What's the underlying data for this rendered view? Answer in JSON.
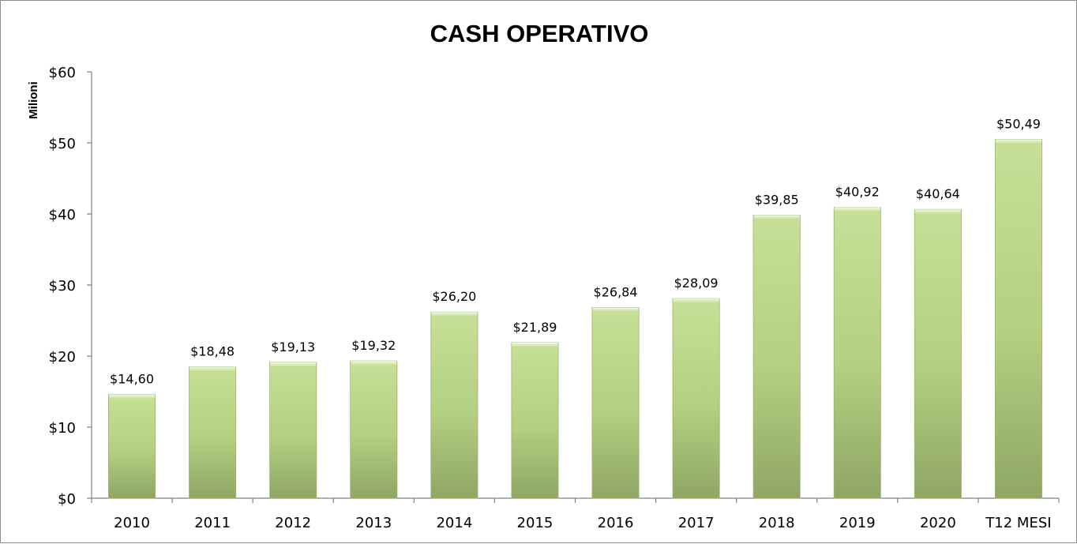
{
  "chart_data": {
    "type": "bar",
    "title": "CASH OPERATIVO",
    "xlabel": "",
    "ylabel": "Milioni",
    "categories": [
      "2010",
      "2011",
      "2012",
      "2013",
      "2014",
      "2015",
      "2016",
      "2017",
      "2018",
      "2019",
      "2020",
      "T12 MESI"
    ],
    "values": [
      14.6,
      18.48,
      19.13,
      19.32,
      26.2,
      21.89,
      26.84,
      28.09,
      39.85,
      40.92,
      40.64,
      50.49
    ],
    "data_labels": [
      "$14,60",
      "$18,48",
      "$19,13",
      "$19,32",
      "$26,20",
      "$21,89",
      "$26,84",
      "$28,09",
      "$39,85",
      "$40,92",
      "$40,64",
      "$50,49"
    ],
    "ylim": [
      0,
      60
    ],
    "yticks": [
      0,
      10,
      20,
      30,
      40,
      50,
      60
    ],
    "ytick_labels": [
      "$0",
      "$10",
      "$20",
      "$30",
      "$40",
      "$50",
      "$60"
    ],
    "grid": false,
    "legend": "none",
    "bar_color": "#b3cf80"
  }
}
